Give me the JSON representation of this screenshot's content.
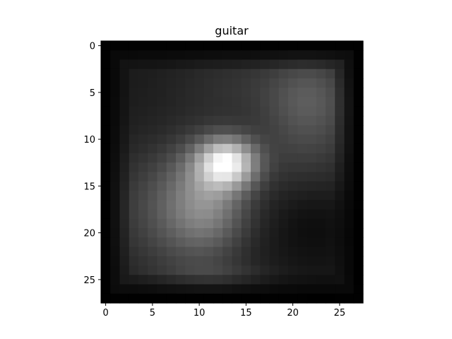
{
  "chart_data": {
    "type": "heatmap",
    "title": "guitar",
    "colormap": "gray",
    "rows": 28,
    "cols": 28,
    "xlim": [
      -0.5,
      27.5
    ],
    "ylim": [
      27.5,
      -0.5
    ],
    "x_ticks": [
      0,
      5,
      10,
      15,
      20,
      25
    ],
    "y_ticks": [
      0,
      5,
      10,
      15,
      20,
      25
    ],
    "x_tick_labels": [
      "0",
      "5",
      "10",
      "15",
      "20",
      "25"
    ],
    "y_tick_labels": [
      "0",
      "5",
      "10",
      "15",
      "20",
      "25"
    ],
    "grid": false,
    "colors": {
      "axis": "#000000",
      "background": "#ffffff"
    }
  }
}
